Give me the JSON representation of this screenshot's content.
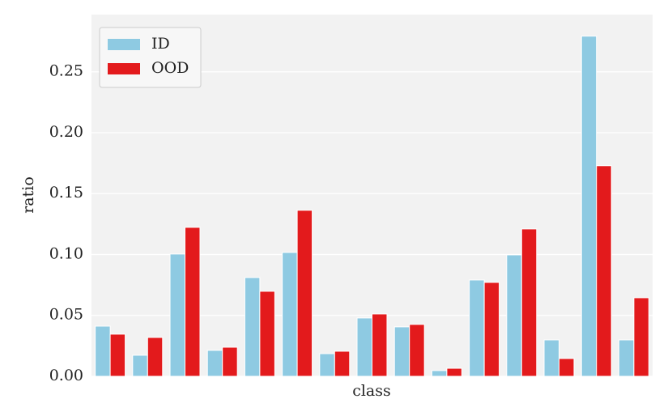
{
  "chart_data": {
    "type": "bar",
    "x_label": "class",
    "y_label": "ratio",
    "categories": [
      null,
      null,
      null,
      null,
      null,
      null,
      null,
      null,
      null,
      null,
      null,
      null,
      null,
      null,
      null
    ],
    "series": [
      {
        "name": "ID",
        "color": "#8ecae2",
        "values": [
          0.0412,
          0.0173,
          0.1004,
          0.0213,
          0.0811,
          0.1017,
          0.0186,
          0.0479,
          0.0406,
          0.0047,
          0.0791,
          0.0997,
          0.0299,
          0.2793,
          0.0299
        ]
      },
      {
        "name": "OOD",
        "color": "#e31a1c",
        "values": [
          0.0346,
          0.0319,
          0.1223,
          0.0239,
          0.0698,
          0.1363,
          0.0206,
          0.0512,
          0.0426,
          0.0066,
          0.0771,
          0.121,
          0.0146,
          0.1729,
          0.0645
        ]
      }
    ],
    "ylim": [
      0,
      0.297
    ],
    "yticks": [
      {
        "value": 0,
        "label": "0.00"
      },
      0.05,
      {
        "value": 0.1,
        "label": "0.10"
      },
      0.15,
      {
        "value": 0.2,
        "label": "0.20"
      },
      0.25
    ],
    "grid": true,
    "legend": "upper-left"
  }
}
